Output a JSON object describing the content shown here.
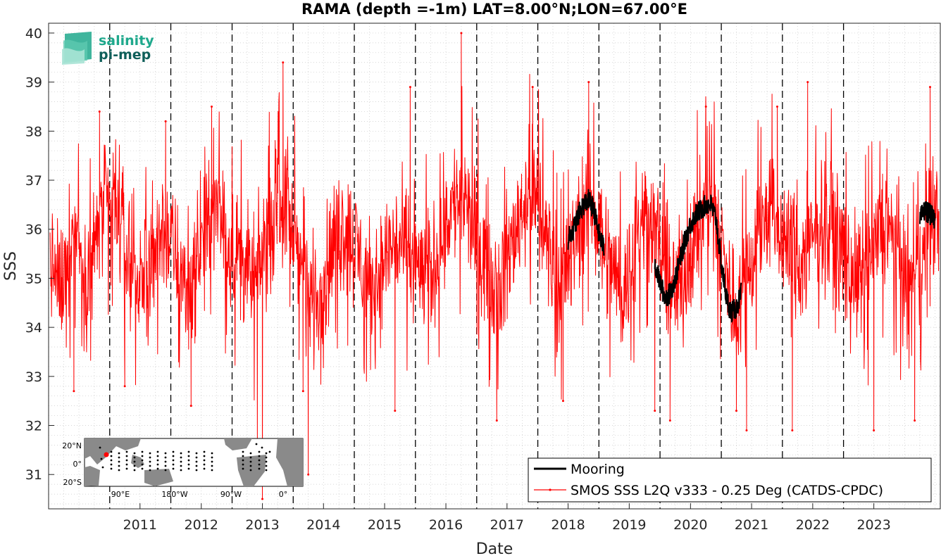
{
  "logo": {
    "line1": "salinity",
    "line2": "pi-mep",
    "color1": "#1fa88c",
    "color2": "#0f5f5a"
  },
  "inset": {
    "lat_labels": [
      "20°N",
      "0°",
      "20°S"
    ],
    "lon_labels": [
      "90°E",
      "180°W",
      "90°W",
      "0°"
    ]
  },
  "chart_data": {
    "type": "line",
    "title": "RAMA (depth =-1m) LAT=8.00°N;LON=67.00°E",
    "xlabel": "Date",
    "ylabel": "SSS",
    "xlim": [
      "2010-01-01",
      "2024-08-01"
    ],
    "ylim": [
      30.3,
      40.2
    ],
    "x_ticks": [
      "2011",
      "2012",
      "2013",
      "2014",
      "2015",
      "2016",
      "2017",
      "2018",
      "2019",
      "2020",
      "2021",
      "2022",
      "2023"
    ],
    "y_ticks": [
      31,
      32,
      33,
      34,
      35,
      36,
      37,
      38,
      39,
      40
    ],
    "grid": "minor-dotted",
    "year_separators": "dashed vertical lines at 1 Jan of each year",
    "legend_position": "bottom-right",
    "series": [
      {
        "name": "Mooring",
        "color": "#000000",
        "segments": [
          {
            "x": [
              "2018-07-01",
              "2018-08-01",
              "2018-09-01",
              "2018-10-01",
              "2018-11-01",
              "2018-12-01",
              "2019-01-01",
              "2019-02-01"
            ],
            "y": [
              35.8,
              36.0,
              36.3,
              36.5,
              36.6,
              36.4,
              35.9,
              35.6
            ]
          },
          {
            "x": [
              "2019-12-01",
              "2020-01-01",
              "2020-02-01",
              "2020-03-01",
              "2020-04-01",
              "2020-05-01",
              "2020-06-01",
              "2020-07-01",
              "2020-08-01",
              "2020-09-01",
              "2020-10-01",
              "2020-11-01",
              "2020-12-01",
              "2021-01-01",
              "2021-02-01",
              "2021-03-01",
              "2021-04-01",
              "2021-05-01"
            ],
            "y": [
              35.3,
              34.9,
              34.6,
              34.7,
              35.0,
              35.4,
              35.8,
              36.1,
              36.3,
              36.4,
              36.5,
              36.5,
              36.2,
              35.3,
              34.6,
              34.3,
              34.4,
              34.7
            ]
          },
          {
            "x": [
              "2024-04-01",
              "2024-05-01",
              "2024-06-01",
              "2024-07-01"
            ],
            "y": [
              36.2,
              36.4,
              36.3,
              36.2
            ]
          }
        ]
      },
      {
        "name": "SMOS SSS L2Q v333 - 0.25 Deg (CATDS-CPDC)",
        "color": "#ff0000",
        "monthly_mean": {
          "x": [
            "2010-01-15",
            "2010-02-15",
            "2010-03-15",
            "2010-04-15",
            "2010-05-15",
            "2010-06-15",
            "2010-07-15",
            "2010-08-15",
            "2010-09-15",
            "2010-10-15",
            "2010-11-15",
            "2010-12-15",
            "2011-01-15",
            "2011-02-15",
            "2011-03-15",
            "2011-04-15",
            "2011-05-15",
            "2011-06-15",
            "2011-07-15",
            "2011-08-15",
            "2011-09-15",
            "2011-10-15",
            "2011-11-15",
            "2011-12-15",
            "2012-01-15",
            "2012-02-15",
            "2012-03-15",
            "2012-04-15",
            "2012-05-15",
            "2012-06-15",
            "2012-07-15",
            "2012-08-15",
            "2012-09-15",
            "2012-10-15",
            "2012-11-15",
            "2012-12-15",
            "2013-01-15",
            "2013-02-15",
            "2013-03-15",
            "2013-04-15",
            "2013-05-15",
            "2013-06-15",
            "2013-07-15",
            "2013-08-15",
            "2013-09-15",
            "2013-10-15",
            "2013-11-15",
            "2013-12-15",
            "2014-01-15",
            "2014-02-15",
            "2014-03-15",
            "2014-04-15",
            "2014-05-15",
            "2014-06-15",
            "2014-07-15",
            "2014-08-15",
            "2014-09-15",
            "2014-10-15",
            "2014-11-15",
            "2014-12-15",
            "2015-01-15",
            "2015-02-15",
            "2015-03-15",
            "2015-04-15",
            "2015-05-15",
            "2015-06-15",
            "2015-07-15",
            "2015-08-15",
            "2015-09-15",
            "2015-10-15",
            "2015-11-15",
            "2015-12-15",
            "2016-01-15",
            "2016-02-15",
            "2016-03-15",
            "2016-04-15",
            "2016-05-15",
            "2016-06-15",
            "2016-07-15",
            "2016-08-15",
            "2016-09-15",
            "2016-10-15",
            "2016-11-15",
            "2016-12-15",
            "2017-01-15",
            "2017-02-15",
            "2017-03-15",
            "2017-04-15",
            "2017-05-15",
            "2017-06-15",
            "2017-07-15",
            "2017-08-15",
            "2017-09-15",
            "2017-10-15",
            "2017-11-15",
            "2017-12-15",
            "2018-01-15",
            "2018-02-15",
            "2018-03-15",
            "2018-04-15",
            "2018-05-15",
            "2018-06-15",
            "2018-07-15",
            "2018-08-15",
            "2018-09-15",
            "2018-10-15",
            "2018-11-15",
            "2018-12-15",
            "2019-01-15",
            "2019-02-15",
            "2019-03-15",
            "2019-04-15",
            "2019-05-15",
            "2019-06-15",
            "2019-07-15",
            "2019-08-15",
            "2019-09-15",
            "2019-10-15",
            "2019-11-15",
            "2019-12-15",
            "2020-01-15",
            "2020-02-15",
            "2020-03-15",
            "2020-04-15",
            "2020-05-15",
            "2020-06-15",
            "2020-07-15",
            "2020-08-15",
            "2020-09-15",
            "2020-10-15",
            "2020-11-15",
            "2020-12-15",
            "2021-01-15",
            "2021-02-15",
            "2021-03-15",
            "2021-04-15",
            "2021-05-15",
            "2021-06-15",
            "2021-07-15",
            "2021-08-15",
            "2021-09-15",
            "2021-10-15",
            "2021-11-15",
            "2021-12-15",
            "2022-01-15",
            "2022-02-15",
            "2022-03-15",
            "2022-04-15",
            "2022-05-15",
            "2022-06-15",
            "2022-07-15",
            "2022-08-15",
            "2022-09-15",
            "2022-10-15",
            "2022-11-15",
            "2022-12-15",
            "2023-01-15",
            "2023-02-15",
            "2023-03-15",
            "2023-04-15",
            "2023-05-15",
            "2023-06-15",
            "2023-07-15",
            "2023-08-15",
            "2023-09-15",
            "2023-10-15",
            "2023-11-15",
            "2023-12-15",
            "2024-01-15",
            "2024-02-15",
            "2024-03-15",
            "2024-04-15",
            "2024-05-15",
            "2024-06-15",
            "2024-07-15"
          ],
          "y": [
            35.3,
            35.0,
            34.8,
            35.2,
            35.8,
            36.1,
            35.4,
            35.0,
            35.4,
            35.9,
            36.3,
            36.5,
            36.4,
            36.3,
            36.0,
            35.6,
            35.2,
            35.0,
            34.9,
            35.2,
            35.6,
            35.9,
            36.0,
            35.9,
            35.6,
            35.2,
            34.9,
            34.8,
            35.0,
            35.4,
            35.8,
            36.1,
            36.3,
            36.2,
            36.0,
            35.7,
            35.6,
            35.5,
            35.3,
            35.0,
            34.9,
            35.2,
            35.7,
            36.0,
            36.4,
            36.6,
            36.4,
            36.1,
            35.8,
            35.3,
            34.9,
            34.6,
            34.5,
            34.7,
            35.1,
            35.5,
            35.8,
            36.0,
            36.0,
            35.8,
            35.6,
            35.3,
            35.0,
            34.8,
            34.9,
            35.2,
            35.5,
            35.7,
            35.7,
            35.6,
            35.5,
            35.4,
            35.2,
            35.1,
            35.0,
            35.2,
            35.6,
            36.0,
            36.3,
            36.5,
            36.6,
            36.5,
            36.3,
            36.0,
            35.8,
            35.5,
            35.2,
            35.0,
            34.9,
            35.1,
            35.5,
            35.9,
            36.3,
            36.6,
            36.7,
            36.6,
            36.3,
            35.9,
            35.5,
            35.2,
            35.0,
            35.1,
            35.4,
            35.8,
            36.2,
            36.5,
            36.6,
            36.3,
            35.9,
            35.6,
            35.3,
            35.0,
            34.8,
            34.9,
            35.3,
            35.8,
            36.2,
            36.4,
            36.2,
            35.8,
            35.3,
            34.9,
            34.7,
            34.8,
            35.0,
            35.4,
            35.8,
            36.1,
            36.3,
            36.4,
            36.3,
            36.0,
            35.4,
            34.8,
            34.4,
            34.5,
            34.8,
            35.2,
            35.6,
            35.9,
            36.2,
            36.4,
            36.3,
            36.0,
            35.8,
            35.6,
            35.4,
            35.3,
            35.4,
            35.6,
            35.9,
            36.1,
            36.2,
            36.1,
            35.9,
            35.6,
            35.4,
            35.2,
            35.0,
            34.9,
            35.1,
            35.4,
            35.7,
            35.9,
            36.0,
            35.9,
            35.6,
            35.3,
            35.0,
            34.8,
            34.9,
            35.4,
            35.9,
            36.2,
            36.2
          ]
        },
        "variability": "daily values scatter roughly ±1.5 around the monthly mean",
        "extremes": [
          {
            "x": "2010-06-01",
            "y": 32.7
          },
          {
            "x": "2010-11-01",
            "y": 38.4
          },
          {
            "x": "2011-04-01",
            "y": 32.8
          },
          {
            "x": "2011-12-01",
            "y": 38.2
          },
          {
            "x": "2012-05-01",
            "y": 32.4
          },
          {
            "x": "2012-09-01",
            "y": 38.5
          },
          {
            "x": "2013-06-01",
            "y": 31.6
          },
          {
            "x": "2013-07-01",
            "y": 30.5
          },
          {
            "x": "2013-11-01",
            "y": 39.4
          },
          {
            "x": "2014-03-01",
            "y": 32.7
          },
          {
            "x": "2014-04-01",
            "y": 31.0
          },
          {
            "x": "2015-09-01",
            "y": 32.3
          },
          {
            "x": "2015-12-01",
            "y": 38.9
          },
          {
            "x": "2016-10-01",
            "y": 40.0
          },
          {
            "x": "2017-05-01",
            "y": 32.1
          },
          {
            "x": "2017-12-01",
            "y": 38.9
          },
          {
            "x": "2018-06-01",
            "y": 32.5
          },
          {
            "x": "2018-11-01",
            "y": 39.0
          },
          {
            "x": "2019-12-01",
            "y": 32.3
          },
          {
            "x": "2020-03-01",
            "y": 32.1
          },
          {
            "x": "2020-10-01",
            "y": 38.5
          },
          {
            "x": "2021-04-01",
            "y": 32.3
          },
          {
            "x": "2021-06-01",
            "y": 31.9
          },
          {
            "x": "2021-12-01",
            "y": 38.5
          },
          {
            "x": "2022-03-01",
            "y": 31.9
          },
          {
            "x": "2022-06-01",
            "y": 39.0
          },
          {
            "x": "2023-07-01",
            "y": 31.9
          },
          {
            "x": "2024-03-01",
            "y": 32.1
          },
          {
            "x": "2024-06-01",
            "y": 38.9
          }
        ]
      }
    ]
  }
}
